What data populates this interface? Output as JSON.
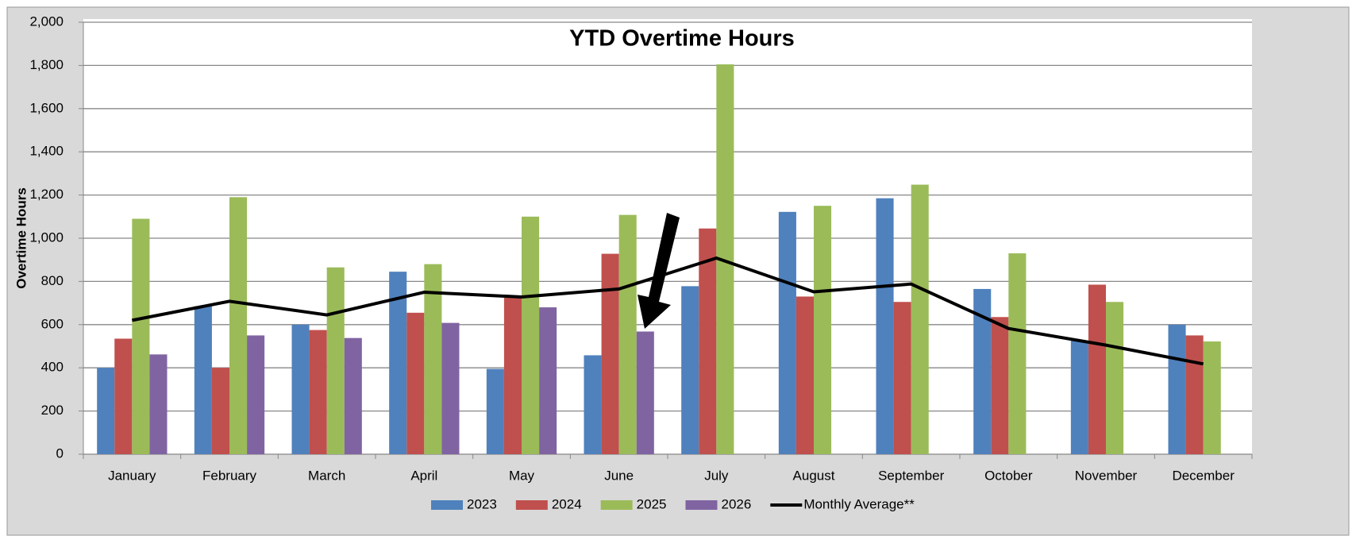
{
  "chart_data": {
    "type": "bar",
    "title": "YTD Overtime Hours",
    "ylabel": "Overtime Hours",
    "categories": [
      "January",
      "February",
      "March",
      "April",
      "May",
      "June",
      "July",
      "August",
      "September",
      "October",
      "November",
      "December"
    ],
    "series": [
      {
        "name": "2023",
        "color": "#4f81bd",
        "values": [
          400,
          685,
          600,
          845,
          395,
          458,
          778,
          1122,
          1185,
          765,
          525,
          600
        ]
      },
      {
        "name": "2024",
        "color": "#c0504d",
        "values": [
          535,
          400,
          575,
          655,
          725,
          928,
          1045,
          730,
          705,
          635,
          785,
          550
        ]
      },
      {
        "name": "2025",
        "color": "#9bbb59",
        "values": [
          1090,
          1190,
          865,
          880,
          1100,
          1108,
          1805,
          1150,
          1248,
          930,
          705,
          522
        ]
      },
      {
        "name": "2026",
        "color": "#8064a2",
        "values": [
          462,
          550,
          538,
          608,
          680,
          568,
          null,
          null,
          null,
          null,
          null,
          null
        ]
      },
      {
        "name": "Monthly Average**",
        "color": "#000000",
        "type": "line",
        "values": [
          620,
          708,
          645,
          750,
          728,
          765,
          908,
          752,
          788,
          582,
          505,
          418
        ]
      }
    ],
    "ylim": [
      0,
      2000
    ],
    "yticks": [
      0,
      200,
      400,
      600,
      800,
      {
        "value": 1000,
        "label": "1,000"
      },
      {
        "value": 1200,
        "label": "1,200"
      },
      {
        "value": 1400,
        "label": "1,400"
      },
      {
        "value": 1600,
        "label": "1,600"
      },
      {
        "value": 1800,
        "label": "1,800"
      },
      {
        "value": 2000,
        "label": "2,000"
      }
    ],
    "grid": true,
    "legend": "bottom"
  }
}
